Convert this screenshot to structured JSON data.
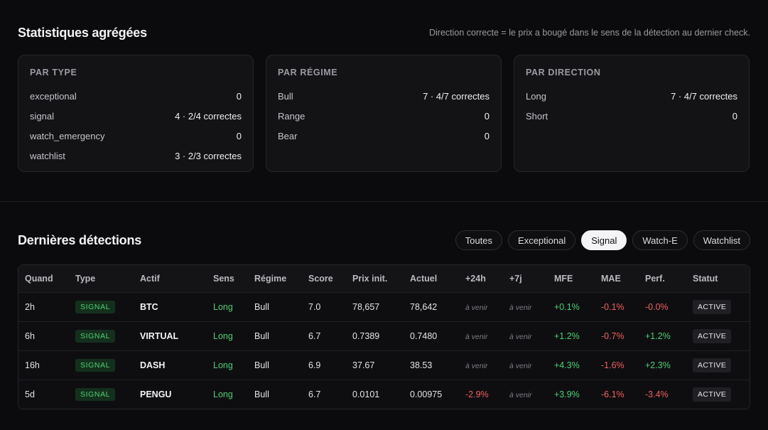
{
  "stats": {
    "title": "Statistiques agrégées",
    "note": "Direction correcte = le prix a bougé dans le sens de la détection au dernier check.",
    "cards": [
      {
        "title": "PAR TYPE",
        "rows": [
          {
            "label": "exceptional",
            "value": "0"
          },
          {
            "label": "signal",
            "value": "4 · 2/4 correctes"
          },
          {
            "label": "watch_emergency",
            "value": "0"
          },
          {
            "label": "watchlist",
            "value": "3 · 2/3 correctes"
          }
        ]
      },
      {
        "title": "PAR RÉGIME",
        "rows": [
          {
            "label": "Bull",
            "value": "7 · 4/7 correctes"
          },
          {
            "label": "Range",
            "value": "0"
          },
          {
            "label": "Bear",
            "value": "0"
          }
        ]
      },
      {
        "title": "PAR DIRECTION",
        "rows": [
          {
            "label": "Long",
            "value": "7 · 4/7 correctes"
          },
          {
            "label": "Short",
            "value": "0"
          }
        ]
      }
    ]
  },
  "detections": {
    "title": "Dernières détections",
    "filters": [
      {
        "label": "Toutes",
        "active": false
      },
      {
        "label": "Exceptional",
        "active": false
      },
      {
        "label": "Signal",
        "active": true
      },
      {
        "label": "Watch-E",
        "active": false
      },
      {
        "label": "Watchlist",
        "active": false
      }
    ],
    "columns": [
      "Quand",
      "Type",
      "Actif",
      "Sens",
      "Régime",
      "Score",
      "Prix init.",
      "Actuel",
      "+24h",
      "+7j",
      "MFE",
      "MAE",
      "Perf.",
      "Statut"
    ],
    "rows": [
      {
        "when": "2h",
        "type": "SIGNAL",
        "asset": "BTC",
        "side": "Long",
        "regime": "Bull",
        "score": "7.0",
        "init": "78,657",
        "current": "78,642",
        "h24": "à venir",
        "h24_kind": "pending",
        "d7": "à venir",
        "d7_kind": "pending",
        "mfe": "+0.1%",
        "mfe_kind": "pos",
        "mae": "-0.1%",
        "mae_kind": "neg",
        "perf": "-0.0%",
        "perf_kind": "neg",
        "status": "ACTIVE"
      },
      {
        "when": "6h",
        "type": "SIGNAL",
        "asset": "VIRTUAL",
        "side": "Long",
        "regime": "Bull",
        "score": "6.7",
        "init": "0.7389",
        "current": "0.7480",
        "h24": "à venir",
        "h24_kind": "pending",
        "d7": "à venir",
        "d7_kind": "pending",
        "mfe": "+1.2%",
        "mfe_kind": "pos",
        "mae": "-0.7%",
        "mae_kind": "neg",
        "perf": "+1.2%",
        "perf_kind": "pos",
        "status": "ACTIVE"
      },
      {
        "when": "16h",
        "type": "SIGNAL",
        "asset": "DASH",
        "side": "Long",
        "regime": "Bull",
        "score": "6.9",
        "init": "37.67",
        "current": "38.53",
        "h24": "à venir",
        "h24_kind": "pending",
        "d7": "à venir",
        "d7_kind": "pending",
        "mfe": "+4.3%",
        "mfe_kind": "pos",
        "mae": "-1.6%",
        "mae_kind": "neg",
        "perf": "+2.3%",
        "perf_kind": "pos",
        "status": "ACTIVE"
      },
      {
        "when": "5d",
        "type": "SIGNAL",
        "asset": "PENGU",
        "side": "Long",
        "regime": "Bull",
        "score": "6.7",
        "init": "0.0101",
        "current": "0.00975",
        "h24": "-2.9%",
        "h24_kind": "neg",
        "d7": "à venir",
        "d7_kind": "pending",
        "mfe": "+3.9%",
        "mfe_kind": "pos",
        "mae": "-6.1%",
        "mae_kind": "neg",
        "perf": "-3.4%",
        "perf_kind": "neg",
        "status": "ACTIVE"
      }
    ]
  }
}
